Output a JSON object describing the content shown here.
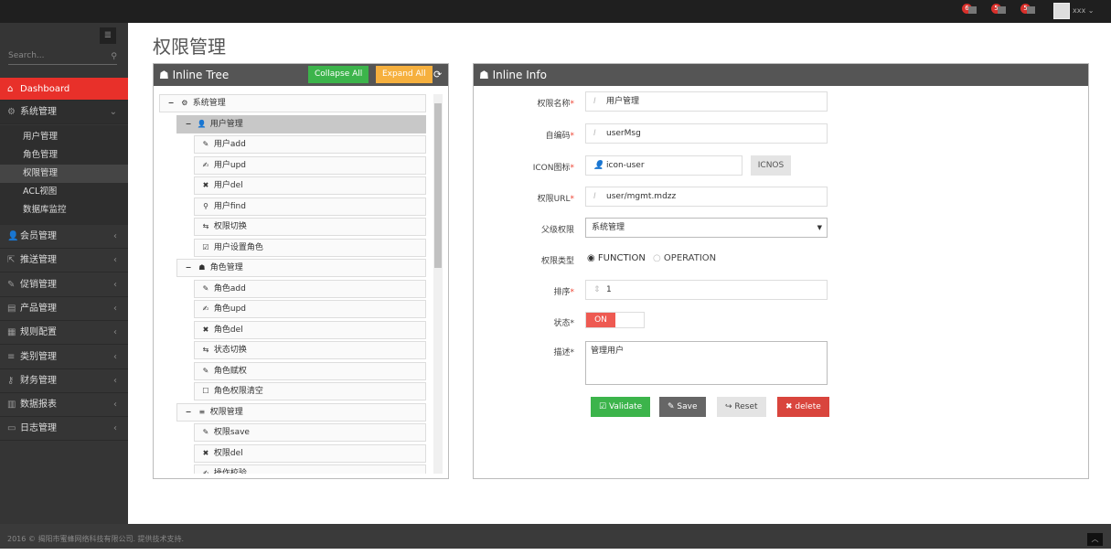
{
  "topbar": {
    "notifications": [
      {
        "count": "6",
        "icon": "bell-icon"
      },
      {
        "count": "5",
        "icon": "envelope-icon"
      },
      {
        "count": "5",
        "icon": "tasks-icon"
      }
    ],
    "user": "xxx"
  },
  "sidebar": {
    "search_placeholder": "Search...",
    "dashboard": "Dashboard",
    "system": "系统管理",
    "sub_items": [
      "用户管理",
      "角色管理",
      "权限管理",
      "ACL视图",
      "数据库监控"
    ],
    "sections": [
      {
        "label": "会员管理",
        "icon": "user-icon"
      },
      {
        "label": "推送管理",
        "icon": "share-icon"
      },
      {
        "label": "促销管理",
        "icon": "pencil-icon"
      },
      {
        "label": "产品管理",
        "icon": "book-icon"
      },
      {
        "label": "规则配置",
        "icon": "list-alt-icon"
      },
      {
        "label": "类别管理",
        "icon": "bars-icon"
      },
      {
        "label": "财务管理",
        "icon": "key-icon"
      },
      {
        "label": "数据报表",
        "icon": "chart-icon"
      },
      {
        "label": "日志管理",
        "icon": "credit-card-icon"
      }
    ]
  },
  "page_title": "权限管理",
  "tree_panel": {
    "title": "Inline Tree",
    "collapse_all": "Collapse All",
    "expand_all": "Expand All",
    "nodes": [
      {
        "label": "系统管理",
        "level": 0,
        "icon": "⚙"
      },
      {
        "label": "用户管理",
        "level": 1,
        "icon": "👤",
        "selected": true
      },
      {
        "label": "用户add",
        "level": 2,
        "icon": "✎"
      },
      {
        "label": "用户upd",
        "level": 2,
        "icon": "✍"
      },
      {
        "label": "用户del",
        "level": 2,
        "icon": "✖"
      },
      {
        "label": "用户find",
        "level": 2,
        "icon": "⚲"
      },
      {
        "label": "权限切换",
        "level": 2,
        "icon": "⇆"
      },
      {
        "label": "用户设置角色",
        "level": 2,
        "icon": "☑"
      },
      {
        "label": "角色管理",
        "level": 1,
        "icon": "☗"
      },
      {
        "label": "角色add",
        "level": 2,
        "icon": "✎"
      },
      {
        "label": "角色upd",
        "level": 2,
        "icon": "✍"
      },
      {
        "label": "角色del",
        "level": 2,
        "icon": "✖"
      },
      {
        "label": "状态切换",
        "level": 2,
        "icon": "⇆"
      },
      {
        "label": "角色赋权",
        "level": 2,
        "icon": "✎"
      },
      {
        "label": "角色权限清空",
        "level": 2,
        "icon": "☐"
      },
      {
        "label": "权限管理",
        "level": 1,
        "icon": "≡"
      },
      {
        "label": "权限save",
        "level": 2,
        "icon": "✎"
      },
      {
        "label": "权限del",
        "level": 2,
        "icon": "✖"
      },
      {
        "label": "操作校验",
        "level": 2,
        "icon": "✍"
      }
    ]
  },
  "info_panel": {
    "title": "Inline Info",
    "fields": {
      "name_label": "权限名称",
      "name": "用户管理",
      "code_label": "自编码",
      "code": "userMsg",
      "icon_label": "ICON图标",
      "icon": "icon-user",
      "icons_button": "ICNOS",
      "url_label": "权限URL",
      "url": "user/mgmt.mdzz",
      "parent_label": "父级权限",
      "parent": "系统管理",
      "type_label": "权限类型",
      "type_options": [
        "FUNCTION",
        "OPERATION"
      ],
      "type_selected": "FUNCTION",
      "order_label": "排序",
      "order": "1",
      "status_label": "状态",
      "status": "ON",
      "desc_label": "描述",
      "desc": "管理用户"
    },
    "buttons": {
      "validate": "Validate",
      "save": "Save",
      "reset": "Reset",
      "delete": "delete"
    }
  },
  "footer": "2016 © 揭阳市蜜蜂网络科技有限公司. 提供技术支持.",
  "colors": {
    "accent": "#e8302a",
    "success": "#3cb44b",
    "warning": "#f6b03e",
    "danger": "#d9453d"
  }
}
